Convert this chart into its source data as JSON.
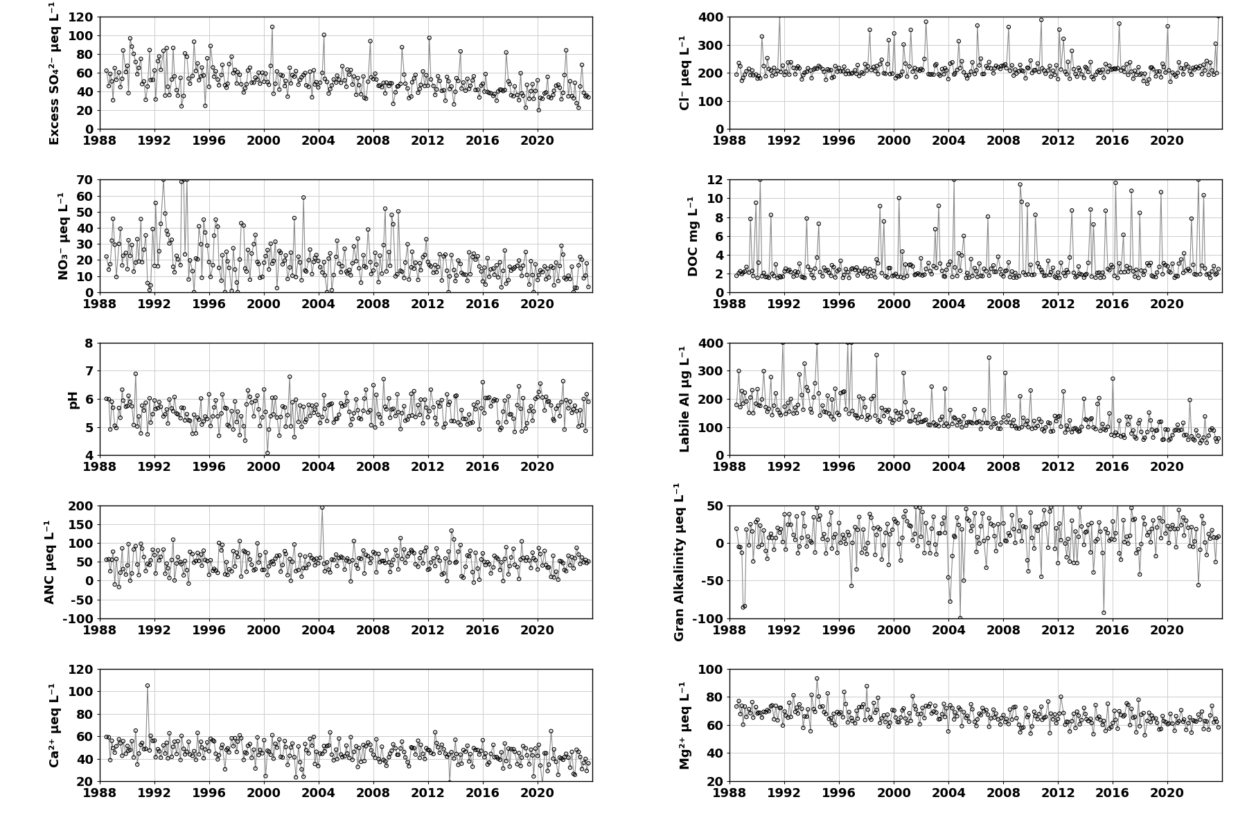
{
  "subplots": [
    {
      "row": 0,
      "col": 0,
      "ylabel": "Excess SO₄²⁻ μeq L⁻¹",
      "ylim": [
        0,
        120
      ],
      "yticks": [
        0,
        20,
        40,
        60,
        80,
        100,
        120
      ]
    },
    {
      "row": 0,
      "col": 1,
      "ylabel": "Cl⁻ μeq L⁻¹",
      "ylim": [
        0,
        400
      ],
      "yticks": [
        0,
        100,
        200,
        300,
        400
      ]
    },
    {
      "row": 1,
      "col": 0,
      "ylabel": "NO₃⁻ μeq L⁻¹",
      "ylim": [
        0,
        70
      ],
      "yticks": [
        0,
        10,
        20,
        30,
        40,
        50,
        60,
        70
      ]
    },
    {
      "row": 1,
      "col": 1,
      "ylabel": "DOC mg L⁻¹",
      "ylim": [
        0,
        12
      ],
      "yticks": [
        0,
        2,
        4,
        6,
        8,
        10,
        12
      ]
    },
    {
      "row": 2,
      "col": 0,
      "ylabel": "pH",
      "ylim": [
        4,
        8
      ],
      "yticks": [
        4,
        5,
        6,
        7,
        8
      ]
    },
    {
      "row": 2,
      "col": 1,
      "ylabel": "Labile Al μg L⁻¹",
      "ylim": [
        0,
        400
      ],
      "yticks": [
        0,
        100,
        200,
        300,
        400
      ]
    },
    {
      "row": 3,
      "col": 0,
      "ylabel": "ANC μeq L⁻¹",
      "ylim": [
        -100,
        200
      ],
      "yticks": [
        -100,
        -50,
        0,
        50,
        100,
        150,
        200
      ]
    },
    {
      "row": 3,
      "col": 1,
      "ylabel": "Gran Alkalinity μeq L⁻¹",
      "ylim": [
        -100,
        50
      ],
      "yticks": [
        -100,
        -50,
        0,
        50
      ]
    },
    {
      "row": 4,
      "col": 0,
      "ylabel": "Ca²⁺ μeq L⁻¹",
      "ylim": [
        20,
        120
      ],
      "yticks": [
        20,
        40,
        60,
        80,
        100,
        120
      ]
    },
    {
      "row": 4,
      "col": 1,
      "ylabel": "Mg²⁺ μeq L⁻¹",
      "ylim": [
        20,
        100
      ],
      "yticks": [
        20,
        40,
        60,
        80,
        100
      ]
    }
  ],
  "xlim": [
    1988,
    2024
  ],
  "xticks": [
    1988,
    1992,
    1996,
    2000,
    2004,
    2008,
    2012,
    2016,
    2020
  ],
  "marker_color": "black",
  "marker_size": 14,
  "line_color": "#888888",
  "line_width": 0.8,
  "background_color": "white",
  "grid_color": "#cccccc",
  "tick_fontsize": 13,
  "label_fontsize": 13
}
